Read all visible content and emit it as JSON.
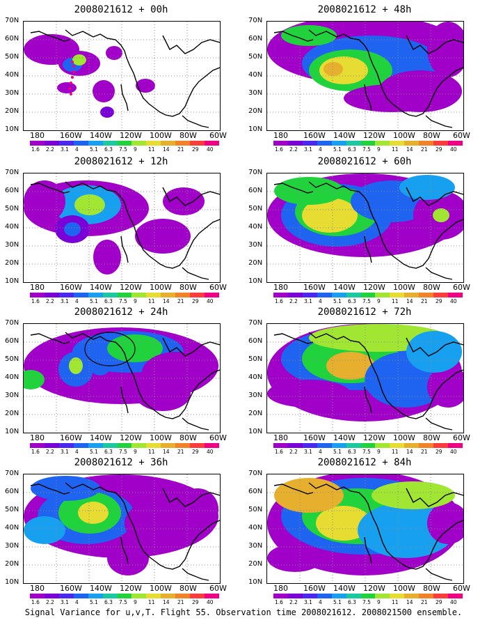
{
  "figure": {
    "caption": "Signal Variance for u,v,T. Flight 55. Observation time 2008021612. 2008021500 ensemble."
  },
  "axes": {
    "lat_labels": [
      "70N",
      "60N",
      "50N",
      "40N",
      "30N",
      "20N",
      "10N"
    ],
    "lon_labels": [
      "180",
      "160W",
      "140W",
      "120W",
      "100W",
      "80W",
      "60W"
    ]
  },
  "colorbar": {
    "labels": [
      "1.6",
      "2.2",
      "3.1",
      "4",
      "5.1",
      "6.3",
      "7.5",
      "9",
      "11",
      "14",
      "21",
      "29",
      "40"
    ],
    "colors": [
      "#a000c8",
      "#7a00d8",
      "#4a28f0",
      "#1e64f0",
      "#18a0f0",
      "#1cc8a0",
      "#20d23c",
      "#a0e632",
      "#e6dc32",
      "#e6af2d",
      "#f08228",
      "#fa3c3c",
      "#f00082"
    ]
  },
  "panels": [
    {
      "title": "2008021612 + 00h"
    },
    {
      "title": "2008021612 + 48h"
    },
    {
      "title": "2008021612 + 12h"
    },
    {
      "title": "2008021612 + 60h"
    },
    {
      "title": "2008021612 + 24h"
    },
    {
      "title": "2008021612 + 72h"
    },
    {
      "title": "2008021612 + 36h"
    },
    {
      "title": "2008021612 + 84h"
    }
  ]
}
